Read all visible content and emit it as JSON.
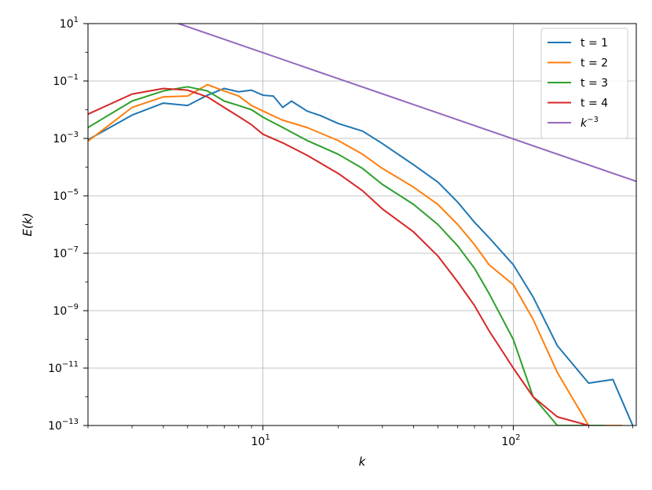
{
  "chart_data": {
    "type": "line",
    "title": "",
    "xlabel": "k",
    "ylabel": "E(k)",
    "xscale": "log",
    "yscale": "log",
    "xlim": [
      2,
      310
    ],
    "ylim": [
      1e-13,
      10
    ],
    "grid": true,
    "legend": {
      "placement": "top-right",
      "entries": [
        {
          "label": "t = 1"
        },
        {
          "label": "t = 2"
        },
        {
          "label": "t = 3"
        },
        {
          "label": "t = 4"
        },
        {
          "label": "k^-3",
          "base": "k",
          "exponent": "−3"
        }
      ]
    },
    "x_ticks": [
      {
        "value": 10,
        "base": "10",
        "exponent": "1"
      },
      {
        "value": 100,
        "base": "10",
        "exponent": "2"
      }
    ],
    "y_ticks": [
      {
        "value": 10,
        "base": "10",
        "exponent": "1"
      },
      {
        "value": 0.1,
        "base": "10",
        "exponent": "−1"
      },
      {
        "value": 0.001,
        "base": "10",
        "exponent": "−3"
      },
      {
        "value": 1e-05,
        "base": "10",
        "exponent": "−5"
      },
      {
        "value": 1e-07,
        "base": "10",
        "exponent": "−7"
      },
      {
        "value": 1e-09,
        "base": "10",
        "exponent": "−9"
      },
      {
        "value": 1e-11,
        "base": "10",
        "exponent": "−11"
      },
      {
        "value": 1e-13,
        "base": "10",
        "exponent": "−13"
      }
    ],
    "series": [
      {
        "name": "t = 1",
        "color": "#1f77b4",
        "x": [
          2,
          3,
          4,
          5,
          6,
          7,
          8,
          9,
          10,
          11,
          12,
          13,
          15,
          17,
          20,
          25,
          30,
          40,
          50,
          60,
          70,
          80,
          100,
          120,
          150,
          200,
          250,
          300
        ],
        "y": [
          0.0009,
          0.0065,
          0.017,
          0.014,
          0.032,
          0.055,
          0.042,
          0.048,
          0.032,
          0.03,
          0.012,
          0.02,
          0.009,
          0.0062,
          0.0033,
          0.0018,
          0.00066,
          0.00012,
          3e-05,
          6e-06,
          1.2e-06,
          3.5e-07,
          4e-08,
          3e-09,
          6e-11,
          3e-12,
          4e-12,
          1e-13
        ]
      },
      {
        "name": "t = 2",
        "color": "#ff7f0e",
        "x": [
          2,
          3,
          4,
          5,
          6,
          7,
          8,
          9,
          10,
          12,
          15,
          20,
          25,
          30,
          40,
          50,
          60,
          70,
          80,
          100,
          120,
          150,
          200,
          250,
          270
        ],
        "y": [
          0.0008,
          0.012,
          0.028,
          0.03,
          0.075,
          0.045,
          0.03,
          0.014,
          0.009,
          0.0043,
          0.0024,
          0.00084,
          0.00028,
          9e-05,
          2e-05,
          5e-06,
          1e-06,
          2e-07,
          4e-08,
          8e-09,
          5e-10,
          7e-12,
          1e-13,
          1e-13,
          1e-13
        ]
      },
      {
        "name": "t = 3",
        "color": "#2ca02c",
        "x": [
          2,
          3,
          4,
          5,
          6,
          7,
          8,
          9,
          10,
          12,
          15,
          20,
          25,
          30,
          40,
          50,
          60,
          70,
          80,
          100,
          120,
          150,
          200,
          230
        ],
        "y": [
          0.0024,
          0.02,
          0.045,
          0.063,
          0.045,
          0.02,
          0.014,
          0.01,
          0.0055,
          0.0024,
          0.00085,
          0.00028,
          9e-05,
          2.5e-05,
          5e-06,
          1e-06,
          1.8e-07,
          3e-08,
          4e-09,
          1e-10,
          1e-12,
          1e-13,
          1e-13,
          1e-13
        ]
      },
      {
        "name": "t = 4",
        "color": "#d62728",
        "x": [
          2,
          3,
          4,
          5,
          6,
          7,
          8,
          9,
          10,
          12,
          15,
          20,
          25,
          30,
          40,
          50,
          60,
          70,
          80,
          100,
          120,
          150,
          200
        ],
        "y": [
          0.007,
          0.035,
          0.055,
          0.048,
          0.028,
          0.012,
          0.0058,
          0.003,
          0.0014,
          0.0007,
          0.00026,
          6e-05,
          1.5e-05,
          3.5e-06,
          5.5e-07,
          8e-08,
          1e-08,
          1.5e-09,
          2e-10,
          1e-11,
          1e-12,
          2e-13,
          1e-13
        ]
      },
      {
        "name": "k^-3",
        "color": "#9467bd",
        "x": [
          4.6,
          310
        ],
        "y": [
          10,
          3.2e-05
        ]
      }
    ]
  }
}
